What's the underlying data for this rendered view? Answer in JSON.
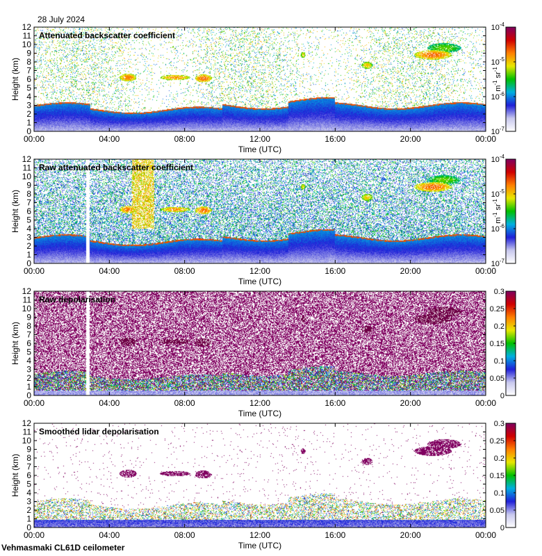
{
  "header": {
    "date": "28 July 2024"
  },
  "footer": {
    "instrument": "Vehmasmaki CL61D ceilometer"
  },
  "colors": {
    "scale": [
      "#ffffff",
      "#c8c8ee",
      "#2020d8",
      "#00b0e0",
      "#00c000",
      "#e8e800",
      "#ff8000",
      "#d00000",
      "#800060"
    ]
  },
  "chart_data": [
    {
      "type": "heatmap",
      "title": "Attenuated backscatter coefficient",
      "xlabel": "Time (UTC)",
      "ylabel": "Height (km)",
      "x_ticks": [
        "00:00",
        "04:00",
        "08:00",
        "12:00",
        "16:00",
        "20:00",
        "00:00"
      ],
      "y_ticks": [
        "0",
        "1",
        "2",
        "3",
        "4",
        "5",
        "6",
        "7",
        "8",
        "9",
        "10",
        "11",
        "12"
      ],
      "ylim": [
        0,
        12
      ],
      "xlim_hours": [
        0,
        24
      ],
      "colorbar": {
        "scale": "log",
        "range": [
          1e-07,
          0.0001
        ],
        "ticks": [
          {
            "base": "10",
            "exp": "-4"
          },
          {
            "base": "10",
            "exp": "-5"
          },
          {
            "base": "10",
            "exp": "-6"
          },
          {
            "base": "10",
            "exp": "-7"
          }
        ],
        "unit": {
          "m": "m",
          "m_exp": "-1",
          "sr": "sr",
          "sr_exp": "-1"
        }
      },
      "noise": "low",
      "gap_hour": null
    },
    {
      "type": "heatmap",
      "title": "Raw attenuated backscatter coefficient",
      "xlabel": "Time (UTC)",
      "ylabel": "Height (km)",
      "x_ticks": [
        "00:00",
        "04:00",
        "08:00",
        "12:00",
        "16:00",
        "20:00",
        "00:00"
      ],
      "y_ticks": [
        "0",
        "1",
        "2",
        "3",
        "4",
        "5",
        "6",
        "7",
        "8",
        "9",
        "10",
        "11",
        "12"
      ],
      "ylim": [
        0,
        12
      ],
      "xlim_hours": [
        0,
        24
      ],
      "colorbar": {
        "scale": "log",
        "range": [
          1e-07,
          0.0001
        ],
        "ticks": [
          {
            "base": "10",
            "exp": "-4"
          },
          {
            "base": "10",
            "exp": "-5"
          },
          {
            "base": "10",
            "exp": "-6"
          },
          {
            "base": "10",
            "exp": "-7"
          }
        ],
        "unit": {
          "m": "m",
          "m_exp": "-1",
          "sr": "sr",
          "sr_exp": "-1"
        }
      },
      "noise": "high",
      "gap_hour": 2.85
    },
    {
      "type": "heatmap",
      "title": "Raw depolarisation",
      "xlabel": "Time (UTC)",
      "ylabel": "Height (km)",
      "x_ticks": [
        "00:00",
        "04:00",
        "08:00",
        "12:00",
        "16:00",
        "20:00",
        "00:00"
      ],
      "y_ticks": [
        "0",
        "1",
        "2",
        "3",
        "4",
        "5",
        "6",
        "7",
        "8",
        "9",
        "10",
        "11",
        "12"
      ],
      "ylim": [
        0,
        12
      ],
      "xlim_hours": [
        0,
        24
      ],
      "colorbar": {
        "scale": "linear",
        "range": [
          0,
          0.3
        ],
        "ticks": [
          "0.3",
          "0.25",
          "0.2",
          "0.15",
          "0.1",
          "0.05",
          "0"
        ]
      },
      "noise": "depol",
      "gap_hour": 2.85
    },
    {
      "type": "heatmap",
      "title": "Smoothed lidar depolarisation",
      "xlabel": "Time (UTC)",
      "ylabel": "Height (km)",
      "x_ticks": [
        "00:00",
        "04:00",
        "08:00",
        "12:00",
        "16:00",
        "20:00",
        "00:00"
      ],
      "y_ticks": [
        "0",
        "1",
        "2",
        "3",
        "4",
        "5",
        "6",
        "7",
        "8",
        "9",
        "10",
        "11",
        "12"
      ],
      "ylim": [
        0,
        12
      ],
      "xlim_hours": [
        0,
        24
      ],
      "colorbar": {
        "scale": "linear",
        "range": [
          0,
          0.3
        ],
        "ticks": [
          "0.3",
          "0.25",
          "0.2",
          "0.15",
          "0.1",
          "0.05",
          "0"
        ]
      },
      "noise": "smooth",
      "gap_hour": null
    }
  ]
}
